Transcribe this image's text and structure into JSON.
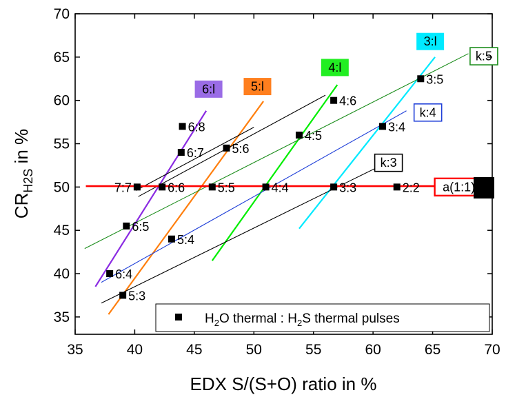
{
  "chart_data": {
    "type": "scatter",
    "title": "",
    "xlabel": "EDX S/(S+O) ratio in %",
    "ylabel": {
      "main": "CR",
      "sub": "H2S",
      "suffix": " in %"
    },
    "xlim": [
      35,
      70
    ],
    "ylim": [
      33,
      70
    ],
    "xticks": [
      35,
      40,
      45,
      50,
      55,
      60,
      65,
      70
    ],
    "yticks": [
      35,
      40,
      45,
      50,
      55,
      60,
      65,
      70
    ],
    "grid": false,
    "legend": {
      "position": "bottom-right",
      "marker": "square",
      "text_parts": [
        {
          "t": "H",
          "sub": false
        },
        {
          "t": "2",
          "sub": true
        },
        {
          "t": "O thermal : H",
          "sub": false
        },
        {
          "t": "2",
          "sub": true
        },
        {
          "t": "S thermal pulses",
          "sub": false
        }
      ]
    },
    "points": [
      {
        "label": "7:7",
        "x": 40.2,
        "y": 50,
        "label_side": "left"
      },
      {
        "label": "6:6",
        "x": 42.3,
        "y": 50,
        "label_side": "right"
      },
      {
        "label": "5:5",
        "x": 46.5,
        "y": 50,
        "label_side": "right"
      },
      {
        "label": "4:4",
        "x": 51.0,
        "y": 50,
        "label_side": "right"
      },
      {
        "label": "3:3",
        "x": 56.7,
        "y": 50,
        "label_side": "right"
      },
      {
        "label": "2:2",
        "x": 62.0,
        "y": 50,
        "label_side": "right"
      },
      {
        "label": "6:8",
        "x": 44.0,
        "y": 57,
        "label_side": "right"
      },
      {
        "label": "6:7",
        "x": 43.9,
        "y": 54,
        "label_side": "right"
      },
      {
        "label": "5:6",
        "x": 47.7,
        "y": 54.5,
        "label_side": "right"
      },
      {
        "label": "4:5",
        "x": 53.8,
        "y": 56,
        "label_side": "right"
      },
      {
        "label": "4:6",
        "x": 56.7,
        "y": 60,
        "label_side": "right"
      },
      {
        "label": "3:4",
        "x": 60.8,
        "y": 57,
        "label_side": "right"
      },
      {
        "label": "3:5",
        "x": 64.0,
        "y": 62.5,
        "label_side": "right"
      },
      {
        "label": "6:5",
        "x": 39.3,
        "y": 45.5,
        "label_side": "right"
      },
      {
        "label": "5:4",
        "x": 43.1,
        "y": 44,
        "label_side": "right"
      },
      {
        "label": "6:4",
        "x": 37.9,
        "y": 40,
        "label_side": "right"
      },
      {
        "label": "5:3",
        "x": 39.0,
        "y": 37.5,
        "label_side": "right"
      }
    ],
    "series": [
      {
        "name": "6:l",
        "color": "#8a2be2",
        "x": [
          36.7,
          46.0
        ],
        "y": [
          38.5,
          58.8
        ],
        "label_pos": [
          46.2,
          61.3
        ],
        "box_fill": "#9a6ce6"
      },
      {
        "name": "5:l",
        "color": "#ff7f0e",
        "x": [
          37.8,
          50.8
        ],
        "y": [
          35.3,
          59.9
        ],
        "label_pos": [
          50.3,
          61.6
        ],
        "box_fill": "#ff7f1e"
      },
      {
        "name": "4:l",
        "color": "#00ee00",
        "x": [
          46.5,
          57.0
        ],
        "y": [
          41.5,
          61.8
        ],
        "label_pos": [
          56.8,
          63.8
        ],
        "box_fill": "#22ee22"
      },
      {
        "name": "3:l",
        "color": "#00eaff",
        "x": [
          53.8,
          65.2
        ],
        "y": [
          45.2,
          65.0
        ],
        "label_pos": [
          64.8,
          66.8
        ],
        "box_fill": "#00eaff"
      },
      {
        "name": "k:5",
        "color": "#1a8c1a",
        "x": [
          35.8,
          68.0
        ],
        "y": [
          42.9,
          65.4
        ],
        "label_pos": [
          69.3,
          65.1
        ],
        "box_fill": "#ffffff"
      },
      {
        "name": "k:4",
        "color": "#1f3fd8",
        "x": [
          37.2,
          62.8
        ],
        "y": [
          39.0,
          58.8
        ],
        "label_pos": [
          64.6,
          58.6
        ],
        "box_fill": "#ffffff"
      },
      {
        "name": "k:3",
        "color": "#000000",
        "x": [
          37.2,
          60.7
        ],
        "y": [
          36.6,
          52.5
        ],
        "label_pos": [
          61.3,
          52.8
        ],
        "box_fill": "#ffffff"
      },
      {
        "name": "",
        "color": "#000000",
        "x": [
          40.1,
          50.0
        ],
        "y": [
          49.6,
          56.9
        ],
        "label_pos": null,
        "box_fill": null
      },
      {
        "name": "",
        "color": "#000000",
        "x": [
          40.3,
          56.0
        ],
        "y": [
          48.9,
          60.6
        ],
        "label_pos": null,
        "box_fill": null
      },
      {
        "name": "a(1:1)",
        "color": "#ff0000",
        "x": [
          35.9,
          65.3
        ],
        "y": [
          50.1,
          50.1
        ],
        "label_pos": [
          67.2,
          50.0
        ],
        "box_fill": "#ffffff"
      }
    ]
  }
}
